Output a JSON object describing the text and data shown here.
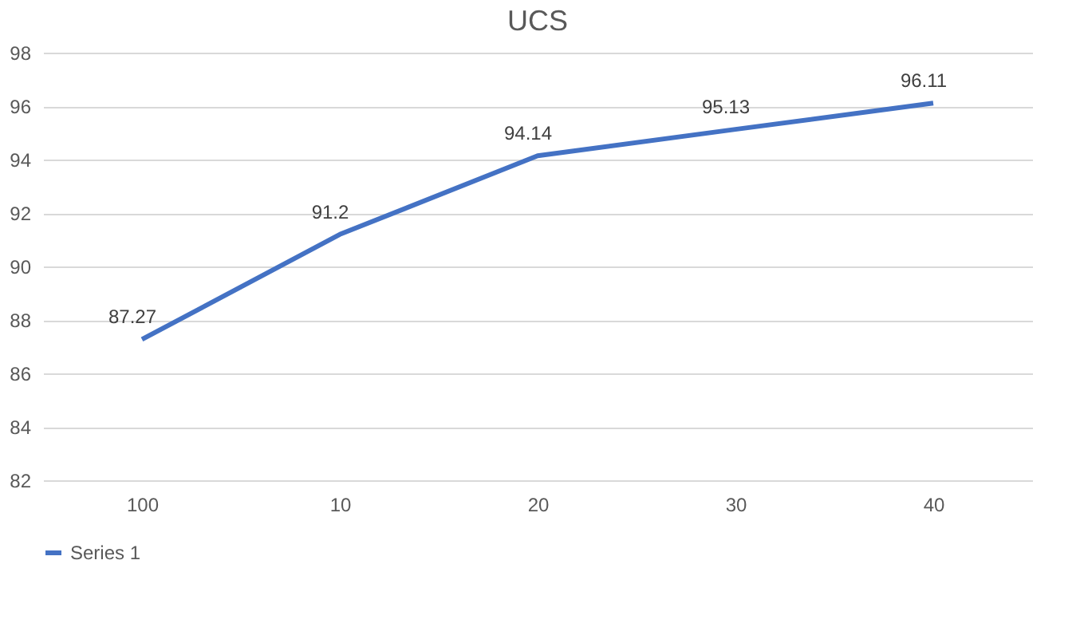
{
  "chart_data": {
    "type": "line",
    "title": "UCS",
    "categories": [
      "100",
      "10",
      "20",
      "30",
      "40"
    ],
    "series": [
      {
        "name": "Series 1",
        "color": "#4472c4",
        "values": [
          87.27,
          91.2,
          94.14,
          95.13,
          96.11
        ]
      }
    ],
    "ylim": [
      82,
      98
    ],
    "yticks": [
      82,
      84,
      86,
      88,
      90,
      92,
      94,
      96,
      98
    ],
    "grid": "y",
    "legend": "bottom",
    "data_labels": true,
    "marker": "none",
    "line_style": "solid"
  }
}
